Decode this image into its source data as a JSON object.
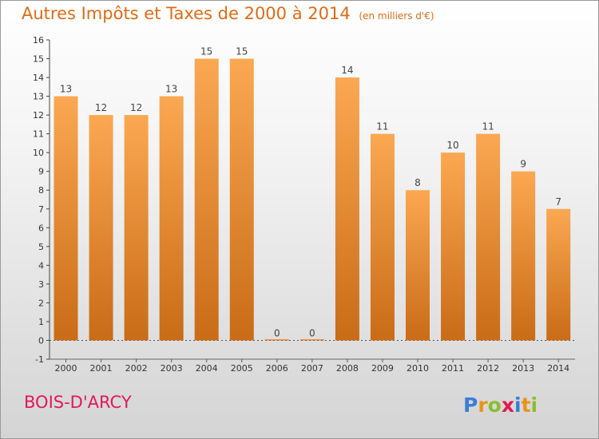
{
  "header": {
    "title": "Autres Impôts et Taxes de 2000 à 2014",
    "subtitle": "(en milliers d'€)"
  },
  "footer": {
    "commune": "BOIS-D'ARCY",
    "logo_text": "Proxiti"
  },
  "colors": {
    "bar_top": "#fba852",
    "bar_bottom": "#c96b17",
    "title": "#e16a14",
    "commune": "#e1195a"
  },
  "chart_data": {
    "type": "bar",
    "categories": [
      "2000",
      "2001",
      "2002",
      "2003",
      "2004",
      "2005",
      "2006",
      "2007",
      "2008",
      "2009",
      "2010",
      "2011",
      "2012",
      "2013",
      "2014"
    ],
    "values": [
      13,
      12,
      12,
      13,
      15,
      15,
      0,
      0,
      14,
      11,
      8,
      10,
      11,
      9,
      7
    ],
    "data_labels": [
      "13",
      "12",
      "12",
      "13",
      "15",
      "15",
      "0",
      "0",
      "14",
      "11",
      "8",
      "10",
      "11",
      "9",
      "7"
    ],
    "ylim": [
      -1,
      16
    ],
    "yticks": [
      -1,
      0,
      1,
      2,
      3,
      4,
      5,
      6,
      7,
      8,
      9,
      10,
      11,
      12,
      13,
      14,
      15,
      16
    ],
    "grid": false,
    "legend": "none"
  }
}
